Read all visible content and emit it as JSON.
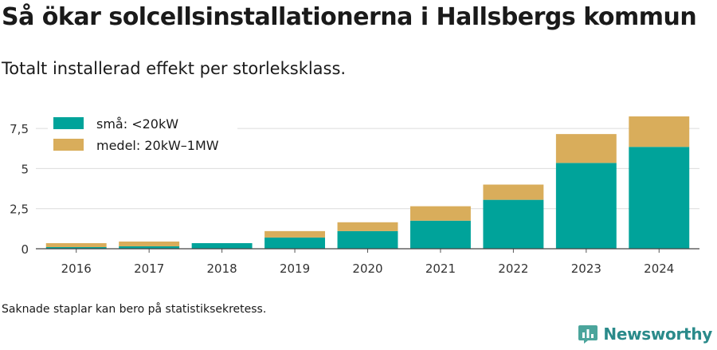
{
  "header": {
    "title": "Så ökar solcellsinstallationerna i Hallsbergs kommun",
    "subtitle": "Totalt installerad effekt per storleksklass."
  },
  "footer": {
    "note": "Saknade staplar kan bero på statistiksekretess.",
    "brand": "Newsworthy",
    "brand_icon": "bar-chart-speech-bubble-icon"
  },
  "chart_data": {
    "type": "bar",
    "stacked": true,
    "categories": [
      "2016",
      "2017",
      "2018",
      "2019",
      "2020",
      "2021",
      "2022",
      "2023",
      "2024"
    ],
    "series": [
      {
        "name": "små: <20kW",
        "color": "#00a39a",
        "values": [
          0.1,
          0.15,
          0.35,
          0.7,
          1.1,
          1.75,
          3.05,
          5.35,
          6.35
        ]
      },
      {
        "name": "medel: 20kW–1MW",
        "color": "#d9ad5b",
        "values": [
          0.25,
          0.3,
          0,
          0.4,
          0.55,
          0.9,
          0.95,
          1.8,
          1.9
        ]
      }
    ],
    "ylim": [
      0,
      8.3
    ],
    "yticks": [
      0,
      2.5,
      5,
      7.5
    ],
    "ytick_labels": [
      "0",
      "2,5",
      "5",
      "7,5"
    ],
    "grid": true,
    "legend_position": "top-left"
  }
}
